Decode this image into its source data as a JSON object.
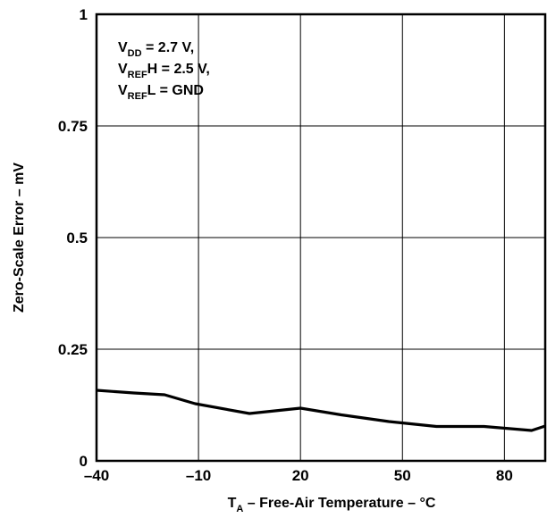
{
  "chart_data": {
    "type": "line",
    "title": "",
    "xlabel": {
      "main": "T",
      "sub": "A",
      "rest": " – Free-Air Temperature – °C"
    },
    "ylabel": "Zero-Scale Error – mV",
    "xlim": [
      -40,
      92
    ],
    "ylim": [
      0,
      1
    ],
    "x_ticks": [
      -40,
      -10,
      20,
      50,
      80
    ],
    "x_tick_labels": [
      "–40",
      "–10",
      "20",
      "50",
      "80"
    ],
    "y_ticks": [
      0,
      0.25,
      0.5,
      0.75,
      1
    ],
    "y_tick_labels": [
      "0",
      "0.25",
      "0.5",
      "0.75",
      "1"
    ],
    "grid": true,
    "annotation": [
      [
        {
          "t": "V",
          "sub": false
        },
        {
          "t": "DD",
          "sub": true
        },
        {
          "t": " = 2.7 V,",
          "sub": false
        }
      ],
      [
        {
          "t": "V",
          "sub": false
        },
        {
          "t": "REF",
          "sub": true
        },
        {
          "t": "H = 2.5 V,",
          "sub": false
        }
      ],
      [
        {
          "t": "V",
          "sub": false
        },
        {
          "t": "REF",
          "sub": true
        },
        {
          "t": "L = GND",
          "sub": false
        }
      ]
    ],
    "series": [
      {
        "x": [
          -40,
          -29,
          -20,
          -11,
          5,
          20,
          32,
          46,
          60,
          74,
          88,
          92
        ],
        "y": [
          0.158,
          0.152,
          0.148,
          0.128,
          0.106,
          0.118,
          0.103,
          0.088,
          0.077,
          0.077,
          0.068,
          0.078
        ]
      }
    ]
  }
}
